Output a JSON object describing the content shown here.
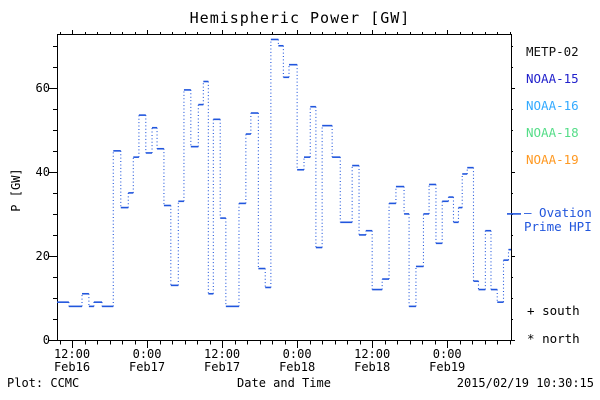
{
  "title": "Hemispheric Power [GW]",
  "axes": {
    "ylabel": "P [GW]",
    "xlabel": "Date and Time",
    "yticks": {
      "major": [
        0,
        20,
        40,
        60
      ],
      "minor_step": 5
    },
    "xticks": {
      "major": [
        {
          "t": 2.4,
          "time": "12:00",
          "date": "Feb16"
        },
        {
          "t": 14.4,
          "time": "0:00",
          "date": "Feb17"
        },
        {
          "t": 26.4,
          "time": "12:00",
          "date": "Feb17"
        },
        {
          "t": 38.4,
          "time": "0:00",
          "date": "Feb18"
        },
        {
          "t": 50.4,
          "time": "12:00",
          "date": "Feb18"
        },
        {
          "t": 62.4,
          "time": "0:00",
          "date": "Feb19"
        }
      ],
      "minor_step_hours": 2,
      "minor_offset_hours": 0.4
    }
  },
  "legend": {
    "satellites": [
      {
        "label": "METP-02",
        "color": "#111111"
      },
      {
        "label": "NOAA-15",
        "color": "#2222cc"
      },
      {
        "label": "NOAA-16",
        "color": "#33aaff"
      },
      {
        "label": "NOAA-18",
        "color": "#55dd88"
      },
      {
        "label": "NOAA-19",
        "color": "#ff9922"
      }
    ],
    "ovation": {
      "line1": "– Ovation",
      "line2": "Prime HPI",
      "color": "#2156dd",
      "marker_gw": 30
    },
    "markers": [
      {
        "symbol": "+",
        "label": "south"
      },
      {
        "symbol": "*",
        "label": "north"
      }
    ]
  },
  "footer": {
    "left": "Plot: CCMC",
    "right": "2015/02/19 10:30:15"
  },
  "chart_data": {
    "type": "line",
    "subtype": "step",
    "series_name": "Ovation Prime HPI",
    "color": "#2156dd",
    "title": "Hemispheric Power [GW]",
    "xlabel": "Date and Time",
    "ylabel": "P [GW]",
    "x_unit": "hours from start of plot (plot begins ~09:30 UT Feb16 2015, ends ~10:10 UT Feb19 2015)",
    "xlim_hours": [
      0,
      72.6
    ],
    "ylim": [
      0,
      72.8
    ],
    "grid": false,
    "right_axis_marker_gw": 30,
    "t_end": 72.6,
    "steps": [
      [
        0,
        9
      ],
      [
        1.9,
        8
      ],
      [
        4.0,
        11
      ],
      [
        5.1,
        8
      ],
      [
        5.9,
        9
      ],
      [
        7.2,
        8
      ],
      [
        9.0,
        45
      ],
      [
        10.2,
        31.5
      ],
      [
        11.4,
        35
      ],
      [
        12.2,
        43.5
      ],
      [
        13.1,
        53.5
      ],
      [
        14.2,
        44.5
      ],
      [
        15.2,
        50.5
      ],
      [
        16.0,
        45.5
      ],
      [
        17.1,
        32
      ],
      [
        18.2,
        13
      ],
      [
        19.4,
        33
      ],
      [
        20.3,
        59.5
      ],
      [
        21.4,
        46
      ],
      [
        22.6,
        56
      ],
      [
        23.4,
        61.5
      ],
      [
        24.2,
        11
      ],
      [
        25.0,
        52.5
      ],
      [
        26.1,
        29
      ],
      [
        27.0,
        8
      ],
      [
        29.1,
        32.5
      ],
      [
        30.2,
        49
      ],
      [
        31.0,
        54
      ],
      [
        32.2,
        17
      ],
      [
        33.3,
        12.5
      ],
      [
        34.2,
        71.5
      ],
      [
        35.4,
        70
      ],
      [
        36.2,
        62.5
      ],
      [
        37.1,
        65.5
      ],
      [
        38.4,
        40.5
      ],
      [
        39.5,
        43.5
      ],
      [
        40.5,
        55.5
      ],
      [
        41.4,
        22
      ],
      [
        42.4,
        51
      ],
      [
        44.0,
        43.5
      ],
      [
        45.3,
        28
      ],
      [
        47.2,
        41.5
      ],
      [
        48.3,
        25
      ],
      [
        49.4,
        26
      ],
      [
        50.4,
        12
      ],
      [
        52.0,
        14.5
      ],
      [
        53.1,
        32.5
      ],
      [
        54.2,
        36.5
      ],
      [
        55.5,
        30
      ],
      [
        56.3,
        8
      ],
      [
        57.4,
        17.5
      ],
      [
        58.6,
        30
      ],
      [
        59.5,
        37
      ],
      [
        60.6,
        23
      ],
      [
        61.6,
        33
      ],
      [
        62.6,
        34
      ],
      [
        63.4,
        28
      ],
      [
        64.2,
        31.5
      ],
      [
        64.8,
        39.5
      ],
      [
        65.6,
        41
      ],
      [
        66.6,
        14
      ],
      [
        67.4,
        12
      ],
      [
        68.5,
        26
      ],
      [
        69.4,
        12
      ],
      [
        70.4,
        9
      ],
      [
        71.4,
        19
      ],
      [
        72.2,
        21.5
      ]
    ]
  }
}
